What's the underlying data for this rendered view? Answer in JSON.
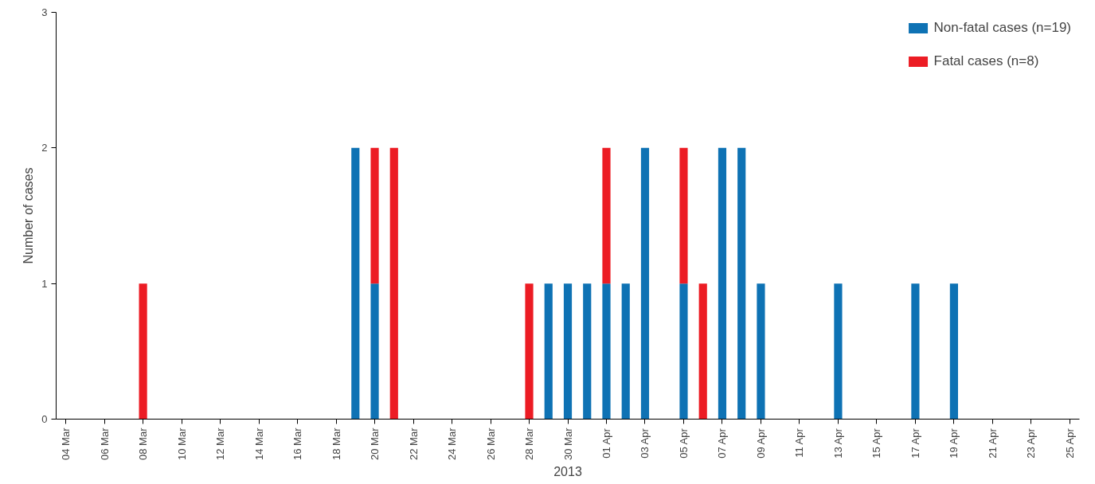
{
  "chart_data": {
    "type": "bar",
    "stacked": true,
    "xlabel": "2013",
    "ylabel": "Number of cases",
    "x": [
      "2013-03-08",
      "2013-03-19",
      "2013-03-20",
      "2013-03-21",
      "2013-03-28",
      "2013-03-29",
      "2013-03-30",
      "2013-03-31",
      "2013-04-01",
      "2013-04-02",
      "2013-04-03",
      "2013-04-05",
      "2013-04-06",
      "2013-04-07",
      "2013-04-08",
      "2013-04-09",
      "2013-04-13",
      "2013-04-17",
      "2013-04-19"
    ],
    "series": [
      {
        "name": "Non-fatal cases (n=19)",
        "color": "#0e72b4",
        "values": [
          null,
          2,
          1,
          null,
          null,
          1,
          1,
          1,
          1,
          1,
          2,
          1,
          null,
          2,
          2,
          1,
          1,
          1,
          1
        ]
      },
      {
        "name": "Fatal cases (n=8)",
        "color": "#ec1c24",
        "values": [
          1,
          null,
          1,
          2,
          1,
          null,
          null,
          null,
          1,
          null,
          null,
          1,
          1,
          null,
          null,
          null,
          null,
          null,
          null
        ]
      }
    ],
    "xlim": [
      "2013-03-03T12:00",
      "2013-04-25T12:00"
    ],
    "xticks": [
      {
        "value": "2013-03-04",
        "label": "04 Mar"
      },
      {
        "value": "2013-03-06",
        "label": "06 Mar"
      },
      {
        "value": "2013-03-08",
        "label": "08 Mar"
      },
      {
        "value": "2013-03-10",
        "label": "10 Mar"
      },
      {
        "value": "2013-03-12",
        "label": "12 Mar"
      },
      {
        "value": "2013-03-14",
        "label": "14 Mar"
      },
      {
        "value": "2013-03-16",
        "label": "16 Mar"
      },
      {
        "value": "2013-03-18",
        "label": "18 Mar"
      },
      {
        "value": "2013-03-20",
        "label": "20 Mar"
      },
      {
        "value": "2013-03-22",
        "label": "22 Mar"
      },
      {
        "value": "2013-03-24",
        "label": "24 Mar"
      },
      {
        "value": "2013-03-26",
        "label": "26 Mar"
      },
      {
        "value": "2013-03-28",
        "label": "28 Mar"
      },
      {
        "value": "2013-03-30",
        "label": "30 Mar"
      },
      {
        "value": "2013-04-01",
        "label": "01 Apr"
      },
      {
        "value": "2013-04-03",
        "label": "03 Apr"
      },
      {
        "value": "2013-04-05",
        "label": "05 Apr"
      },
      {
        "value": "2013-04-07",
        "label": "07 Apr"
      },
      {
        "value": "2013-04-09",
        "label": "09 Apr"
      },
      {
        "value": "2013-04-11",
        "label": "11 Apr"
      },
      {
        "value": "2013-04-13",
        "label": "13 Apr"
      },
      {
        "value": "2013-04-15",
        "label": "15 Apr"
      },
      {
        "value": "2013-04-17",
        "label": "17 Apr"
      },
      {
        "value": "2013-04-19",
        "label": "19 Apr"
      },
      {
        "value": "2013-04-21",
        "label": "21 Apr"
      },
      {
        "value": "2013-04-23",
        "label": "23 Apr"
      },
      {
        "value": "2013-04-25",
        "label": "25 Apr"
      }
    ],
    "ylim": [
      0,
      3
    ],
    "yticks": [
      0,
      1,
      2,
      3
    ],
    "legend": "top right"
  }
}
